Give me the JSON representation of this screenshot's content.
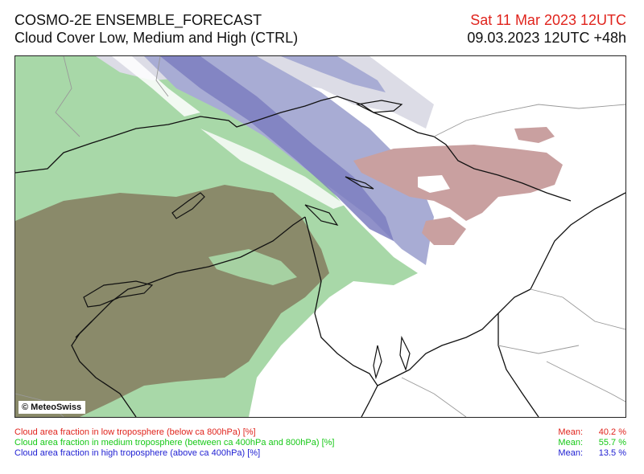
{
  "header": {
    "model": "COSMO-2E ENSEMBLE_FORECAST",
    "product": "Cloud Cover Low, Medium and High (CTRL)",
    "valid_time": "Sat 11 Mar 2023 12UTC",
    "init_time": "09.03.2023 12UTC +48h"
  },
  "map": {
    "copyright": "© MeteoSwiss",
    "colors": {
      "low_cloud": "#c9a0a0",
      "medium_cloud": "#a8d8a8",
      "medium_dense": "#8a8a6a",
      "high_cloud": "#a8acd4",
      "high_dense": "#7c7ec0",
      "thin_high": "#dcdce6",
      "borders": "#111111",
      "regions": "#999999"
    }
  },
  "legend": {
    "low": {
      "label": "Cloud area fraction in low troposphere (below ca 800hPa) [%]",
      "mean_label": "Mean:",
      "mean_value": "40.2 %",
      "color": "#e0241d"
    },
    "medium": {
      "label": "Cloud area fraction in medium troposphere (between ca 400hPa and 800hPa) [%]",
      "mean_label": "Mean:",
      "mean_value": "55.7 %",
      "color": "#16c816"
    },
    "high": {
      "label": "Cloud area fraction in high troposphere (above ca 400hPa) [%]",
      "mean_label": "Mean:",
      "mean_value": "13.5 %",
      "color": "#1e1ed2"
    }
  }
}
